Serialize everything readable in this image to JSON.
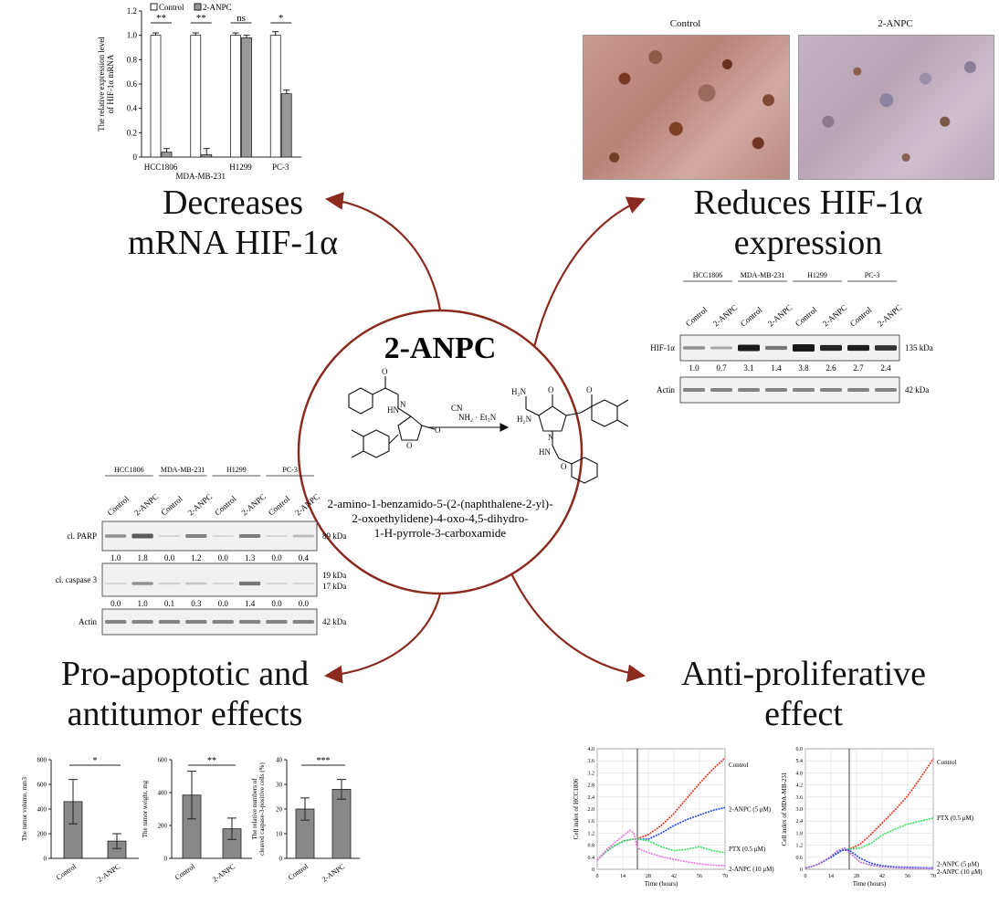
{
  "center": {
    "title": "2-ANPC",
    "reaction_reagents": "NH₂ · Et₃N",
    "reagent_cn": "CN",
    "compound_name_lines": [
      "2-amino-1-benzamido-5-(2-(naphthalene-2-yl)-",
      "2-oxoethylidene)-4-oxo-4,5-dihydro-",
      "1-H-pyrrole-3-carboxamide"
    ]
  },
  "headings": {
    "mrna": [
      "Decreases",
      "mRNA HIF-1α"
    ],
    "hif": [
      "Reduces HIF-1α",
      "expression"
    ],
    "apoptotic": [
      "Pro-apoptotic and",
      "antitumor effects"
    ],
    "proliferative": [
      "Anti-proliferative",
      "effect"
    ]
  },
  "ihc": {
    "control_label": "Control",
    "treated_label": "2-ANPC"
  },
  "chart_data": [
    {
      "type": "bar",
      "id": "mrna",
      "ylabel_lines": [
        "The relative expression level",
        "of HIF-1α mRNA"
      ],
      "categories": [
        "HCC1806",
        "MDA-MB-231",
        "H1299",
        "PC-3"
      ],
      "series": [
        {
          "name": "Control",
          "values": [
            1.0,
            1.0,
            1.0,
            1.0
          ],
          "errors": [
            0.02,
            0.02,
            0.02,
            0.03
          ],
          "color": "#ffffff"
        },
        {
          "name": "2-ANPC",
          "values": [
            0.04,
            0.02,
            0.98,
            0.52
          ],
          "errors": [
            0.03,
            0.05,
            0.02,
            0.03
          ],
          "color": "#999999"
        }
      ],
      "significance": [
        "**",
        "**",
        "ns",
        "*"
      ],
      "ylim": [
        0,
        1.2
      ],
      "yticks": [
        "0",
        "0.2",
        "0.4",
        "0.6",
        "0.8",
        "1.0",
        "1.2"
      ],
      "legend_placement": "top"
    },
    {
      "type": "bar",
      "id": "volume",
      "ylabel": "The tumor volume, mm3",
      "categories": [
        "Control",
        "2-ANPC"
      ],
      "values": [
        460,
        140
      ],
      "errors": [
        180,
        60
      ],
      "significance": "*",
      "ylim": [
        0,
        800
      ],
      "yticks": [
        "0",
        "200",
        "400",
        "600",
        "800"
      ]
    },
    {
      "type": "bar",
      "id": "weight",
      "ylabel": "The tumor weight, mg",
      "categories": [
        "Control",
        "2-ANPC"
      ],
      "values": [
        385,
        180
      ],
      "errors": [
        145,
        65
      ],
      "significance": "**",
      "ylim": [
        0,
        600
      ],
      "yticks": [
        "0",
        "200",
        "400",
        "600"
      ]
    },
    {
      "type": "bar",
      "id": "caspase",
      "ylabel_lines": [
        "The relative numbers of",
        "cleaved caspase-3-positive cells (%)"
      ],
      "categories": [
        "Control",
        "2-ANPC"
      ],
      "values": [
        20,
        28
      ],
      "errors": [
        4.5,
        4
      ],
      "significance": "***",
      "ylim": [
        0,
        40
      ],
      "yticks": [
        "0",
        "10",
        "20",
        "30",
        "40"
      ]
    },
    {
      "type": "line",
      "id": "rtca-hcc1806",
      "xlabel": "Time (hours)",
      "ylabel": "Cell index of HCC1806",
      "xlim": [
        0,
        70
      ],
      "ylim": [
        0,
        4
      ],
      "xticks": [
        "0",
        "14",
        "28",
        "42",
        "56",
        "70"
      ],
      "yticks": [
        "0",
        "0.4",
        "0.8",
        "1.2",
        "1.6",
        "2.0",
        "2.4",
        "2.8",
        "3.2",
        "3.6",
        "4.0"
      ],
      "treatment_time": 22,
      "series": [
        {
          "name": "Control",
          "color": "#e8321e",
          "x": [
            0,
            5,
            10,
            15,
            20,
            22,
            28,
            35,
            42,
            49,
            56,
            63,
            70
          ],
          "y": [
            0.3,
            0.6,
            0.8,
            0.95,
            1.0,
            1.02,
            1.15,
            1.45,
            1.85,
            2.35,
            2.85,
            3.3,
            3.7
          ]
        },
        {
          "name": "2-ANPC (5 μM)",
          "color": "#2846e0",
          "x": [
            0,
            5,
            10,
            15,
            20,
            22,
            28,
            35,
            42,
            49,
            56,
            63,
            70
          ],
          "y": [
            0.3,
            0.6,
            0.8,
            0.95,
            1.0,
            1.0,
            1.0,
            1.2,
            1.45,
            1.65,
            1.8,
            1.95,
            2.05
          ]
        },
        {
          "name": "PTX (0.5 μM)",
          "color": "#36e060",
          "x": [
            0,
            5,
            10,
            15,
            20,
            22,
            28,
            35,
            42,
            49,
            56,
            63,
            70
          ],
          "y": [
            0.3,
            0.6,
            0.8,
            0.95,
            1.0,
            1.0,
            0.95,
            0.75,
            0.62,
            0.66,
            0.75,
            0.62,
            0.55
          ]
        },
        {
          "name": "2-ANPC (10 μM)",
          "color": "#f070e8",
          "x": [
            0,
            5,
            10,
            15,
            18,
            20,
            22,
            28,
            35,
            42,
            49,
            56,
            63,
            70
          ],
          "y": [
            0.3,
            0.65,
            0.9,
            1.15,
            1.3,
            1.2,
            0.7,
            0.55,
            0.42,
            0.33,
            0.25,
            0.18,
            0.14,
            0.12
          ]
        }
      ]
    },
    {
      "type": "line",
      "id": "rtca-mda",
      "xlabel": "Time (hours)",
      "ylabel": "Cell index of MDA-MB-231",
      "xlim": [
        0,
        70
      ],
      "ylim": [
        0,
        6
      ],
      "xticks": [
        "0",
        "14",
        "28",
        "42",
        "56",
        "70"
      ],
      "yticks": [
        "0",
        "0.6",
        "1.2",
        "1.8",
        "2.4",
        "3.0",
        "3.6",
        "4.2",
        "4.8",
        "5.4",
        "6.0"
      ],
      "treatment_time": 24,
      "series": [
        {
          "name": "Control",
          "color": "#e8321e",
          "x": [
            0,
            7,
            14,
            20,
            24,
            30,
            36,
            42,
            49,
            56,
            63,
            70
          ],
          "y": [
            0.05,
            0.25,
            0.6,
            0.95,
            1.0,
            1.25,
            1.75,
            2.3,
            2.95,
            3.65,
            4.55,
            5.5
          ]
        },
        {
          "name": "PTX (0.5 μM)",
          "color": "#36e060",
          "x": [
            0,
            7,
            14,
            20,
            24,
            30,
            36,
            42,
            49,
            56,
            63,
            70
          ],
          "y": [
            0.05,
            0.25,
            0.6,
            0.95,
            1.0,
            1.05,
            1.3,
            1.7,
            2.0,
            2.25,
            2.4,
            2.55
          ]
        },
        {
          "name": "2-ANPC (5 μM)",
          "color": "#2846e0",
          "x": [
            0,
            7,
            14,
            20,
            24,
            30,
            36,
            42,
            49,
            56,
            63,
            70
          ],
          "y": [
            0.05,
            0.25,
            0.6,
            0.95,
            0.95,
            0.55,
            0.3,
            0.18,
            0.12,
            0.1,
            0.08,
            0.07
          ]
        },
        {
          "name": "2-ANPC (10 μM)",
          "color": "#b070e0",
          "x": [
            0,
            7,
            14,
            18,
            22,
            24,
            30,
            36,
            42,
            49,
            56,
            63,
            70
          ],
          "y": [
            0.05,
            0.25,
            0.65,
            0.95,
            1.05,
            0.85,
            0.35,
            0.2,
            0.12,
            0.08,
            0.06,
            0.05,
            0.04
          ]
        }
      ]
    }
  ],
  "blot_hif": {
    "cell_lines": [
      "HCC1806",
      "MDA-MB-231",
      "H1299",
      "PC-3"
    ],
    "lane_labels": [
      "Control",
      "2-ANPC",
      "Control",
      "2-ANPC",
      "Control",
      "2-ANPC",
      "Control",
      "2-ANPC"
    ],
    "rows": [
      {
        "label": "HIF-1α",
        "kda": "135 kDa",
        "quant": [
          "1.0",
          "0.7",
          "3.1",
          "1.4",
          "3.8",
          "2.6",
          "2.7",
          "2.4"
        ]
      },
      {
        "label": "Actin",
        "kda": "42 kDa",
        "quant": []
      }
    ]
  },
  "blot_apop": {
    "cell_lines": [
      "HCC1806",
      "MDA-MB-231",
      "H1299",
      "PC-3"
    ],
    "lane_labels": [
      "Control",
      "2-ANPC",
      "Control",
      "2-ANPC",
      "Control",
      "2-ANPC",
      "Control",
      "2-ANPC"
    ],
    "rows": [
      {
        "label": "cl. PARP",
        "kda": "89 kDa",
        "kda2": "",
        "quant": [
          "1.0",
          "1.8",
          "0.0",
          "1.2",
          "0.0",
          "1.3",
          "0.0",
          "0.4"
        ]
      },
      {
        "label": "cl. caspase 3",
        "kda": "19 kDa",
        "kda2": "17 kDa",
        "quant": [
          "0.0",
          "1.0",
          "0.1",
          "0.3",
          "0.0",
          "1.4",
          "0.0",
          "0.0"
        ]
      },
      {
        "label": "Actin",
        "kda": "42 kDa",
        "kda2": "",
        "quant": []
      }
    ]
  }
}
